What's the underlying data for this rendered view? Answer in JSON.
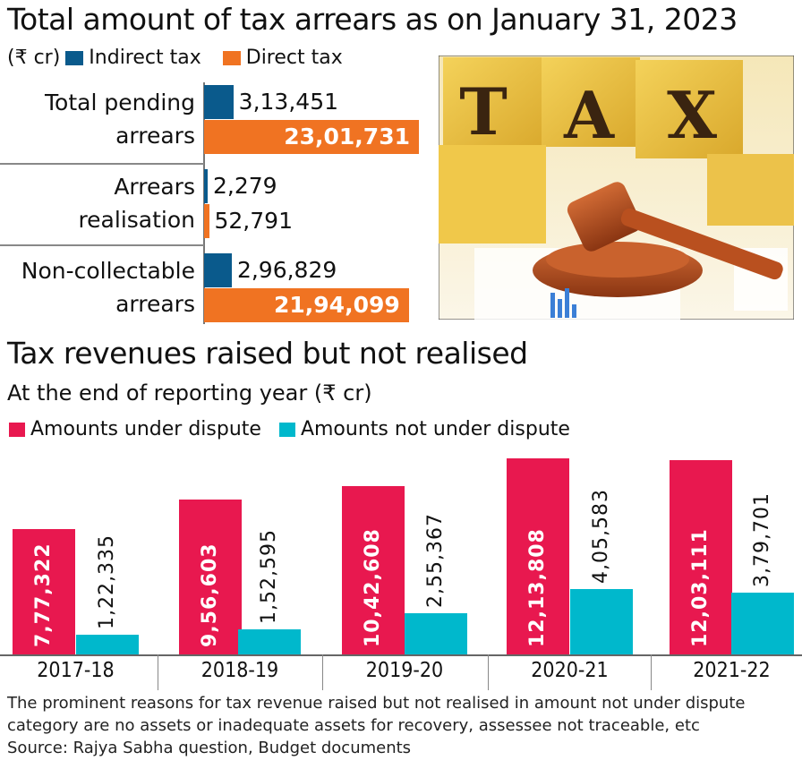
{
  "top": {
    "title": "Total amount of tax arrears as on January 31, 2023",
    "unit": "(₹ cr)",
    "legend": [
      {
        "label": "Indirect tax",
        "color": "#0a5a8c"
      },
      {
        "label": "Direct tax",
        "color": "#f07322"
      }
    ]
  },
  "photo": {
    "letters": [
      "T",
      "A",
      "X"
    ]
  },
  "bottom": {
    "title": "Tax revenues raised but not realised",
    "subtitle": "At the end of reporting year (₹ cr)",
    "legend": [
      {
        "label": "Amounts under dispute",
        "color": "#e8184f"
      },
      {
        "label": "Amounts not under dispute",
        "color": "#00b8cc"
      }
    ]
  },
  "chart_data": [
    {
      "type": "bar",
      "orientation": "horizontal",
      "title": "Total amount of tax arrears as on January 31, 2023",
      "unit": "(₹ cr)",
      "categories": [
        "Total pending arrears",
        "Arrears realisation",
        "Non-collectable arrears"
      ],
      "category_lines": [
        [
          "Total pending",
          "arrears"
        ],
        [
          "Arrears",
          "realisation"
        ],
        [
          "Non-collectable",
          "arrears"
        ]
      ],
      "series": [
        {
          "name": "Indirect tax",
          "color": "#0a5a8c",
          "values": [
            313451,
            2279,
            296829
          ],
          "labels": [
            "3,13,451",
            "2,279",
            "2,96,829"
          ]
        },
        {
          "name": "Direct tax",
          "color": "#f07322",
          "values": [
            2301731,
            52791,
            2194099
          ],
          "labels": [
            "23,01,731",
            "52,791",
            "21,94,099"
          ]
        }
      ]
    },
    {
      "type": "bar",
      "title": "Tax revenues raised but not realised",
      "subtitle": "At the end of reporting year (₹ cr)",
      "categories": [
        "2017-18",
        "2018-19",
        "2019-20",
        "2020-21",
        "2021-22"
      ],
      "series": [
        {
          "name": "Amounts under dispute",
          "color": "#e8184f",
          "values": [
            777322,
            956603,
            1042608,
            1213808,
            1203111
          ],
          "labels": [
            "7,77,322",
            "9,56,603",
            "10,42,608",
            "12,13,808",
            "12,03,111"
          ]
        },
        {
          "name": "Amounts not under dispute",
          "color": "#00b8cc",
          "values": [
            122335,
            152595,
            255367,
            405583,
            379701
          ],
          "labels": [
            "1,22,335",
            "1,52,595",
            "2,55,367",
            "4,05,583",
            "3,79,701"
          ]
        }
      ]
    }
  ],
  "notes": [
    "The prominent reasons for tax revenue raised but not realised in amount not under dispute",
    "category are no assets or inadequate assets for recovery, assessee not traceable, etc",
    "Source: Rajya Sabha question, Budget documents"
  ]
}
